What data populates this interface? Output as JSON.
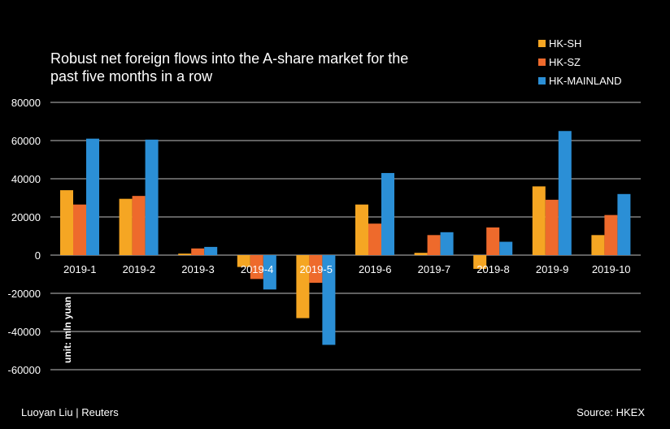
{
  "chart_data": {
    "type": "bar",
    "title": "Robust net foreign flows into the A-share market for the past five months in a row",
    "categories": [
      "2019-1",
      "2019-2",
      "2019-3",
      "2019-4",
      "2019-5",
      "2019-6",
      "2019-7",
      "2019-8",
      "2019-9",
      "2019-10"
    ],
    "series": [
      {
        "name": "HK-SH",
        "color": "#F5A623",
        "values": [
          34000,
          29500,
          800,
          -6200,
          -33000,
          26500,
          1200,
          -7200,
          36000,
          10500
        ]
      },
      {
        "name": "HK-SZ",
        "color": "#EE6A2C",
        "values": [
          26500,
          31000,
          3500,
          -12500,
          -14500,
          16500,
          10500,
          14500,
          29000,
          21000
        ]
      },
      {
        "name": "HK-MAINLAND",
        "color": "#2B8FD6",
        "values": [
          61000,
          60500,
          4300,
          -18000,
          -47000,
          43000,
          12000,
          7000,
          65000,
          32000
        ]
      }
    ],
    "ylim": [
      -60000,
      80000
    ],
    "yticks": [
      80000,
      60000,
      40000,
      20000,
      0,
      -20000,
      -40000,
      -60000
    ],
    "ylabel": "unit: mln yuan",
    "xlabel": "",
    "grid": true,
    "legend_position": "top-right"
  },
  "footer": {
    "credit": "Luoyan Liu | Reuters",
    "source": "Source: HKEX"
  }
}
